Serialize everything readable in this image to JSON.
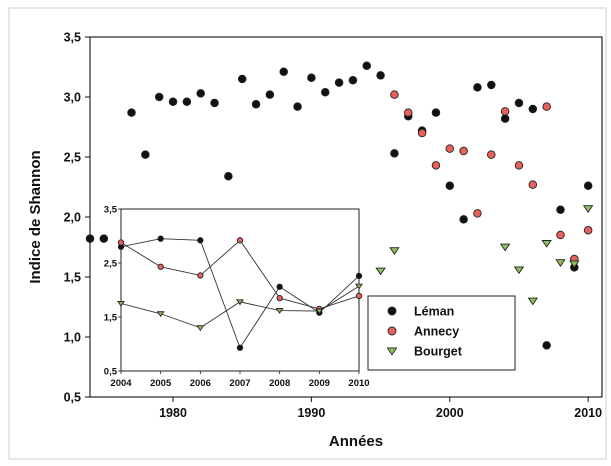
{
  "chart_data": [
    {
      "type": "scatter",
      "title": "",
      "xlabel": "Années",
      "ylabel": "Indice de Shannon",
      "xlim": [
        1974,
        2011
      ],
      "ylim": [
        0.5,
        3.5
      ],
      "x_ticks": [
        1980,
        1990,
        2000,
        2010
      ],
      "y_ticks": [
        0.5,
        1.0,
        1.5,
        2.0,
        2.5,
        3.0,
        3.5
      ],
      "x_tick_labels": [
        "1980",
        "1990",
        "2000",
        "2010"
      ],
      "y_tick_labels": [
        "0,5",
        "1,0",
        "1,5",
        "2,0",
        "2,5",
        "3,0",
        "3,5"
      ],
      "grid": false,
      "legend_position": "lower-right",
      "series": [
        {
          "name": "Léman",
          "color": "#111111",
          "marker": "circle",
          "points": [
            [
              1974,
              1.82
            ],
            [
              1975,
              1.82
            ],
            [
              1977,
              2.87
            ],
            [
              1978,
              2.52
            ],
            [
              1979,
              3.0
            ],
            [
              1980,
              2.96
            ],
            [
              1981,
              2.96
            ],
            [
              1982,
              3.03
            ],
            [
              1983,
              2.95
            ],
            [
              1984,
              2.34
            ],
            [
              1985,
              3.15
            ],
            [
              1986,
              2.94
            ],
            [
              1987,
              3.02
            ],
            [
              1988,
              3.21
            ],
            [
              1989,
              2.92
            ],
            [
              1990,
              3.16
            ],
            [
              1991,
              3.04
            ],
            [
              1992,
              3.12
            ],
            [
              1993,
              3.14
            ],
            [
              1994,
              3.26
            ],
            [
              1995,
              3.18
            ],
            [
              1996,
              2.53
            ],
            [
              1997,
              2.84
            ],
            [
              1998,
              2.72
            ],
            [
              1999,
              2.87
            ],
            [
              2000,
              2.26
            ],
            [
              2001,
              1.98
            ],
            [
              2002,
              3.08
            ],
            [
              2003,
              3.1
            ],
            [
              2004,
              2.82
            ],
            [
              2005,
              2.95
            ],
            [
              2006,
              2.9
            ],
            [
              2007,
              0.93
            ],
            [
              2008,
              2.06
            ],
            [
              2009,
              1.58
            ],
            [
              2010,
              2.26
            ]
          ]
        },
        {
          "name": "Annecy",
          "color": "#e8605a",
          "marker": "circle",
          "points": [
            [
              1996,
              3.02
            ],
            [
              1997,
              2.87
            ],
            [
              1998,
              2.7
            ],
            [
              1999,
              2.43
            ],
            [
              2000,
              2.57
            ],
            [
              2001,
              2.55
            ],
            [
              2002,
              2.03
            ],
            [
              2003,
              2.52
            ],
            [
              2004,
              2.88
            ],
            [
              2005,
              2.43
            ],
            [
              2006,
              2.27
            ],
            [
              2007,
              2.92
            ],
            [
              2008,
              1.85
            ],
            [
              2009,
              1.65
            ],
            [
              2010,
              1.89
            ]
          ]
        },
        {
          "name": "Bourget",
          "color": "#8dbf5a",
          "marker": "triangle-down",
          "points": [
            [
              1995,
              1.55
            ],
            [
              1996,
              1.72
            ],
            [
              2004,
              1.75
            ],
            [
              2005,
              1.56
            ],
            [
              2006,
              1.3
            ],
            [
              2007,
              1.78
            ],
            [
              2008,
              1.62
            ],
            [
              2009,
              1.61
            ],
            [
              2010,
              2.07
            ]
          ]
        }
      ]
    },
    {
      "type": "line",
      "title": "",
      "xlabel": "",
      "ylabel": "",
      "xlim": [
        2004,
        2010
      ],
      "ylim": [
        0.5,
        3.5
      ],
      "x_ticks": [
        2004,
        2005,
        2006,
        2007,
        2008,
        2009,
        2010
      ],
      "y_ticks": [
        0.5,
        1.5,
        2.5,
        3.5
      ],
      "x_tick_labels": [
        "2004",
        "2005",
        "2006",
        "2007",
        "2008",
        "2009",
        "2010"
      ],
      "y_tick_labels": [
        "0,5",
        "1,5",
        "2,5",
        "3,5"
      ],
      "grid": false,
      "legend_position": "none",
      "series": [
        {
          "name": "Léman",
          "color": "#111111",
          "marker": "circle",
          "x": [
            2004,
            2005,
            2006,
            2007,
            2008,
            2009,
            2010
          ],
          "y": [
            2.8,
            2.95,
            2.92,
            0.93,
            2.06,
            1.58,
            2.26
          ]
        },
        {
          "name": "Annecy",
          "color": "#e8605a",
          "marker": "circle",
          "x": [
            2004,
            2005,
            2006,
            2007,
            2008,
            2009,
            2010
          ],
          "y": [
            2.88,
            2.43,
            2.27,
            2.92,
            1.85,
            1.65,
            1.89
          ]
        },
        {
          "name": "Bourget",
          "color": "#8dbf5a",
          "marker": "triangle-down",
          "x": [
            2004,
            2005,
            2006,
            2007,
            2008,
            2009,
            2010
          ],
          "y": [
            1.75,
            1.56,
            1.3,
            1.78,
            1.62,
            1.61,
            2.07
          ]
        }
      ]
    }
  ]
}
